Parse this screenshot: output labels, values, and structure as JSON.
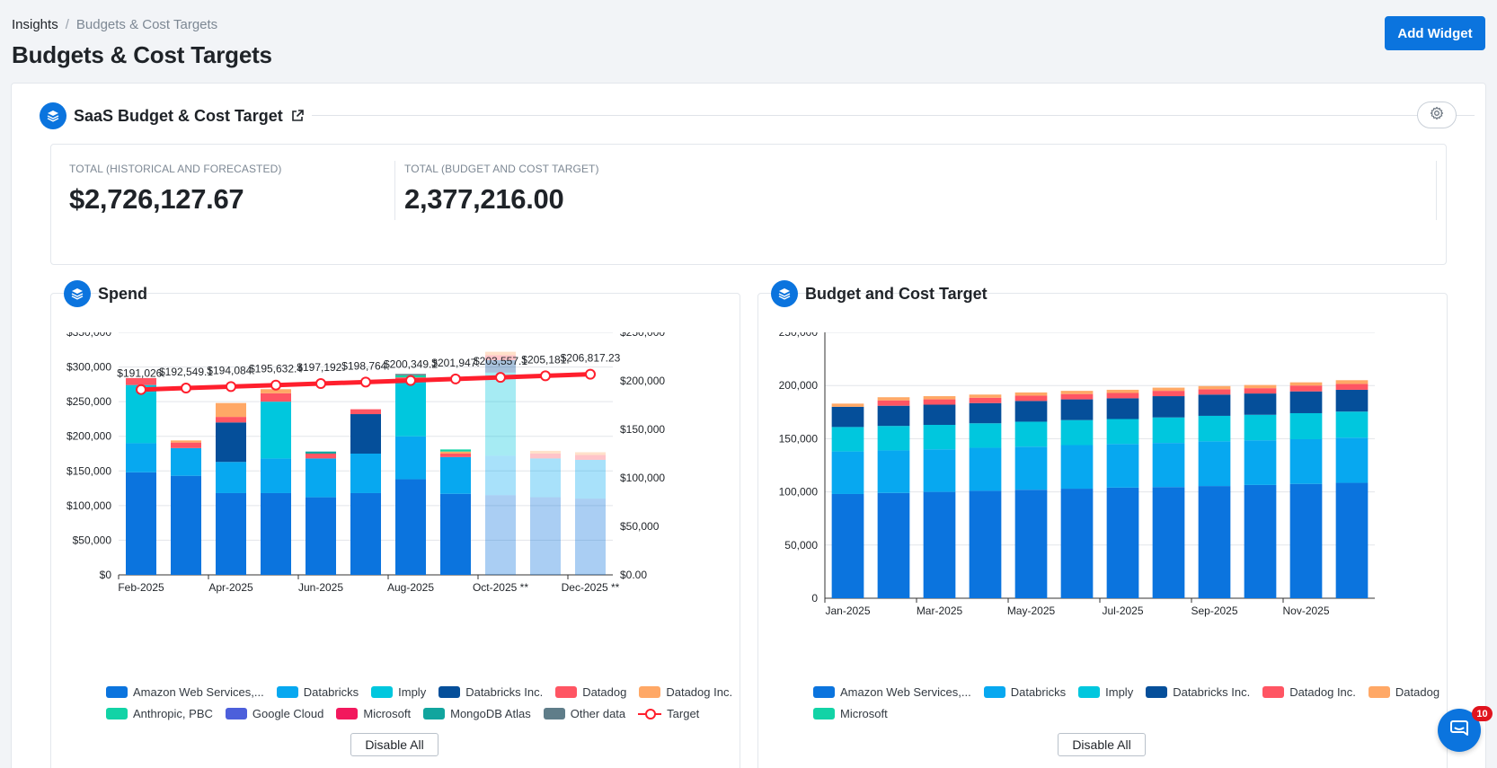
{
  "breadcrumb": {
    "parent": "Insights",
    "separator": "/",
    "current": "Budgets & Cost Targets"
  },
  "page": {
    "title": "Budgets & Cost Targets",
    "add_widget_label": "Add Widget"
  },
  "widget": {
    "title": "SaaS Budget & Cost Target",
    "totals": [
      {
        "label": "TOTAL (HISTORICAL AND FORECASTED)",
        "value": "$2,726,127.67"
      },
      {
        "label": "TOTAL (BUDGET AND COST TARGET)",
        "value": "2,377,216.00"
      }
    ]
  },
  "spend_panel": {
    "title": "Spend",
    "legend": [
      {
        "label": "Amazon Web Services,...",
        "color": "#0b74de"
      },
      {
        "label": "Databricks",
        "color": "#07a8f0"
      },
      {
        "label": "Imply",
        "color": "#00c7de"
      },
      {
        "label": "Databricks Inc.",
        "color": "#054f9a"
      },
      {
        "label": "Datadog",
        "color": "#ff5563"
      },
      {
        "label": "Datadog Inc.",
        "color": "#ffa866"
      },
      {
        "label": "Anthropic, PBC",
        "color": "#12d3a6"
      },
      {
        "label": "Google Cloud",
        "color": "#4c5fdb"
      },
      {
        "label": "Microsoft",
        "color": "#f2185d"
      },
      {
        "label": "MongoDB Atlas",
        "color": "#11a59e"
      },
      {
        "label": "Other data",
        "color": "#5f7d89"
      },
      {
        "label": "Target",
        "color": "#ff1f2d",
        "kind": "line"
      }
    ],
    "disable_all_label": "Disable All"
  },
  "budget_panel": {
    "title": "Budget and Cost Target",
    "legend": [
      {
        "label": "Amazon Web Services,...",
        "color": "#0b74de"
      },
      {
        "label": "Databricks",
        "color": "#07a8f0"
      },
      {
        "label": "Imply",
        "color": "#00c7de"
      },
      {
        "label": "Databricks Inc.",
        "color": "#054f9a"
      },
      {
        "label": "Datadog Inc.",
        "color": "#ff5563"
      },
      {
        "label": "Datadog",
        "color": "#ffa866"
      },
      {
        "label": "Microsoft",
        "color": "#12d3a6"
      }
    ],
    "disable_all_label": "Disable All"
  },
  "chat": {
    "badge_count": "10"
  },
  "chart_data": [
    {
      "type": "bar",
      "stacked": true,
      "categories": [
        "Feb-2025",
        "Mar-2025",
        "Apr-2025",
        "May-2025",
        "Jun-2025",
        "Jul-2025",
        "Aug-2025",
        "Sep-2025",
        "Oct-2025 **",
        "Nov-2025 **",
        "Dec-2025 **"
      ],
      "x_tick_labels": [
        "Feb-2025",
        "Apr-2025",
        "Jun-2025",
        "Aug-2025",
        "Oct-2025 **",
        "Dec-2025 **"
      ],
      "forecast_from_index": 8,
      "ylim": [
        0,
        350000
      ],
      "y_ticks": [
        "$0",
        "$50,000",
        "$100,000",
        "$150,000",
        "$200,000",
        "$250,000",
        "$300,000",
        "$350,000"
      ],
      "y2lim": [
        0,
        250000
      ],
      "y2_ticks": [
        "$0.00",
        "$50,000",
        "$100,000",
        "$150,000",
        "$200,000",
        "$250,000"
      ],
      "series": [
        {
          "name": "Amazon Web Services,...",
          "color": "#0b74de",
          "values": [
            148000,
            143000,
            118000,
            118000,
            112000,
            118000,
            138000,
            117000,
            115000,
            112000,
            110000
          ]
        },
        {
          "name": "Databricks",
          "color": "#07a8f0",
          "values": [
            42000,
            40000,
            45000,
            50000,
            56000,
            57000,
            62000,
            53000,
            57000,
            56000,
            56000
          ]
        },
        {
          "name": "Imply",
          "color": "#00c7de",
          "values": [
            84000,
            0,
            0,
            82000,
            0,
            0,
            78000,
            0,
            120000,
            0,
            0
          ]
        },
        {
          "name": "Databricks Inc.",
          "color": "#054f9a",
          "values": [
            0,
            0,
            57000,
            0,
            0,
            57000,
            0,
            0,
            18000,
            0,
            0
          ]
        },
        {
          "name": "Datadog",
          "color": "#ff5563",
          "values": [
            10000,
            8000,
            8000,
            12000,
            7000,
            7000,
            7000,
            5000,
            7000,
            7000,
            7000
          ]
        },
        {
          "name": "Datadog Inc.",
          "color": "#ffa866",
          "values": [
            0,
            3000,
            20000,
            6000,
            0,
            0,
            0,
            3000,
            5000,
            4000,
            4000
          ]
        },
        {
          "name": "Anthropic, PBC",
          "color": "#12d3a6",
          "values": [
            0,
            0,
            0,
            0,
            0,
            0,
            3000,
            3000,
            0,
            0,
            0
          ]
        },
        {
          "name": "Google Cloud",
          "color": "#4c5fdb",
          "values": [
            0,
            0,
            0,
            0,
            0,
            0,
            0,
            0,
            0,
            0,
            0
          ]
        },
        {
          "name": "Microsoft",
          "color": "#f2185d",
          "values": [
            0,
            0,
            0,
            0,
            0,
            0,
            0,
            0,
            0,
            0,
            0
          ]
        },
        {
          "name": "MongoDB Atlas",
          "color": "#11a59e",
          "values": [
            0,
            0,
            0,
            0,
            3000,
            0,
            0,
            0,
            0,
            0,
            0
          ]
        },
        {
          "name": "Other data",
          "color": "#5f7d89",
          "values": [
            0,
            0,
            0,
            0,
            0,
            0,
            2000,
            0,
            0,
            0,
            0
          ]
        }
      ],
      "target": {
        "name": "Target",
        "color": "#ff1f2d",
        "values": [
          191026,
          192549,
          194084,
          195632,
          197192,
          198764,
          200349,
          201947,
          203557,
          205181,
          206817.23
        ],
        "labels": [
          "$191,026.",
          "$192,549.1",
          "$194,084.",
          "$195,632.4",
          "$197,192.",
          "$198,764.",
          "$200,349.2",
          "$201,947.",
          "$203,557.1",
          "$205,181.",
          "$206,817.23"
        ]
      }
    },
    {
      "type": "bar",
      "stacked": true,
      "categories": [
        "Jan-2025",
        "Feb-2025",
        "Mar-2025",
        "Apr-2025",
        "May-2025",
        "Jun-2025",
        "Jul-2025",
        "Aug-2025",
        "Sep-2025",
        "Oct-2025",
        "Nov-2025",
        "Dec-2025"
      ],
      "x_tick_labels": [
        "Jan-2025",
        "Mar-2025",
        "May-2025",
        "Jul-2025",
        "Sep-2025",
        "Nov-2025"
      ],
      "ylim": [
        0,
        250000
      ],
      "y_ticks": [
        "0",
        "50,000",
        "100,000",
        "150,000",
        "200,000",
        "250,000"
      ],
      "series": [
        {
          "name": "Amazon Web Services,...",
          "color": "#0b74de",
          "values": [
            98000,
            99000,
            100000,
            101000,
            102000,
            103000,
            104000,
            104500,
            105500,
            106500,
            107500,
            108500
          ]
        },
        {
          "name": "Databricks",
          "color": "#07a8f0",
          "values": [
            40000,
            40000,
            40000,
            40500,
            40500,
            41000,
            41000,
            41500,
            42000,
            42000,
            42000,
            42500
          ]
        },
        {
          "name": "Imply",
          "color": "#00c7de",
          "values": [
            23000,
            23000,
            23000,
            23000,
            23500,
            23500,
            23500,
            24000,
            24000,
            24000,
            24500,
            24500
          ]
        },
        {
          "name": "Databricks Inc.",
          "color": "#054f9a",
          "values": [
            19000,
            19000,
            19000,
            19000,
            19500,
            19500,
            19500,
            20000,
            20000,
            20000,
            20500,
            20500
          ]
        },
        {
          "name": "Datadog Inc.",
          "color": "#ff5563",
          "values": [
            0,
            5000,
            5000,
            5000,
            5000,
            5000,
            5000,
            5000,
            5000,
            5000,
            5500,
            5500
          ]
        },
        {
          "name": "Datadog",
          "color": "#ffa866",
          "values": [
            3000,
            3000,
            3000,
            3000,
            3000,
            3000,
            3000,
            3000,
            3000,
            3000,
            3000,
            3500
          ]
        },
        {
          "name": "Microsoft",
          "color": "#12d3a6",
          "values": [
            0,
            0,
            0,
            0,
            0,
            0,
            0,
            0,
            0,
            0,
            0,
            0
          ]
        }
      ]
    }
  ]
}
